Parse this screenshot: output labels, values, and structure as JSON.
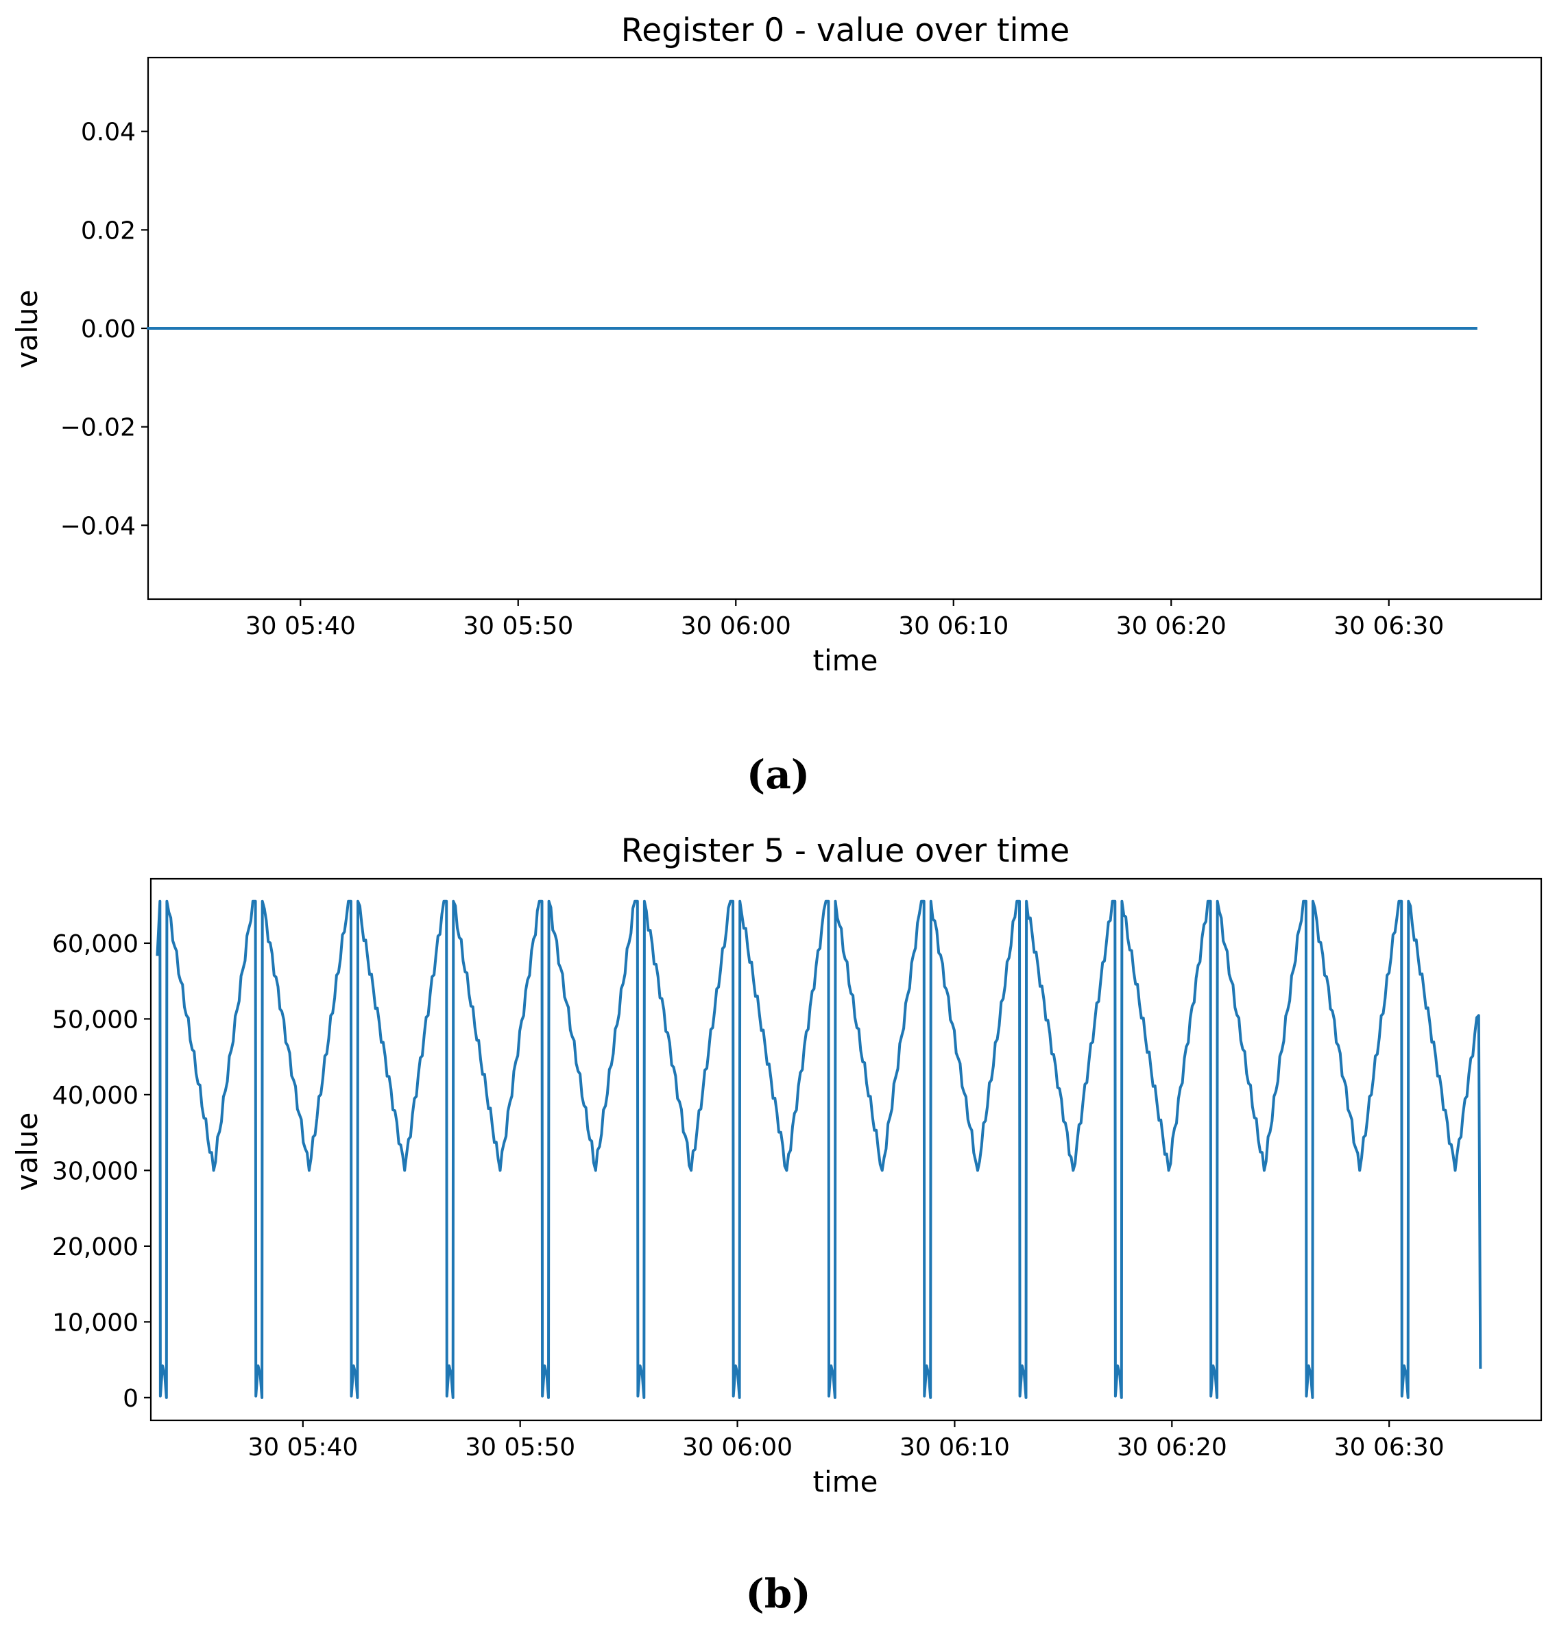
{
  "chart_data": [
    {
      "panel_label": "(a)",
      "type": "line",
      "title": "Register 0 - value over time",
      "xlabel": "time",
      "ylabel": "value",
      "xlim": [
        "30 05:33",
        "30 06:37"
      ],
      "ylim": [
        -0.055,
        0.055
      ],
      "x_ticks": [
        "30 05:40",
        "30 05:50",
        "30 06:00",
        "30 06:10",
        "30 06:20",
        "30 06:30"
      ],
      "y_ticks": [
        {
          "value": 0.04,
          "label": "0.04"
        },
        {
          "value": 0.02,
          "label": "0.02"
        },
        {
          "value": 0.0,
          "label": "0.00"
        },
        {
          "value": -0.02,
          "label": "−0.02"
        },
        {
          "value": -0.04,
          "label": "−0.04"
        }
      ],
      "series": [
        {
          "color": "#1f77b4",
          "x": [
            "30 05:33",
            "30 06:34"
          ],
          "y": [
            0,
            0
          ]
        }
      ]
    },
    {
      "panel_label": "(b)",
      "type": "line",
      "title": "Register 5 - value over time",
      "xlabel": "time",
      "ylabel": "value",
      "xlim": [
        "30 05:33",
        "30 06:37"
      ],
      "ylim": [
        -3000,
        68500
      ],
      "x_ticks": [
        "30 05:40",
        "30 05:50",
        "30 06:00",
        "30 06:10",
        "30 06:20",
        "30 06:30"
      ],
      "y_ticks": [
        {
          "value": 60000,
          "label": "60,000"
        },
        {
          "value": 50000,
          "label": "50,000"
        },
        {
          "value": 40000,
          "label": "40,000"
        },
        {
          "value": 30000,
          "label": "30,000"
        },
        {
          "value": 20000,
          "label": "20,000"
        },
        {
          "value": 10000,
          "label": "10,000"
        },
        {
          "value": 0,
          "label": "0"
        }
      ],
      "series": [
        {
          "color": "#1f77b4",
          "period_minutes": 4.3,
          "pattern": "sawtooth: rise from ~30,000 to 65,535, drop near 0 (small bump ~4,000), jump back to 65,535, then decline to ~30,000",
          "x_start": "30 05:33.3",
          "x_end": "30 06:34.2",
          "min": 0,
          "max": 65535,
          "trough": 30000,
          "start_value": 58500,
          "end_value": 4000
        }
      ]
    }
  ]
}
